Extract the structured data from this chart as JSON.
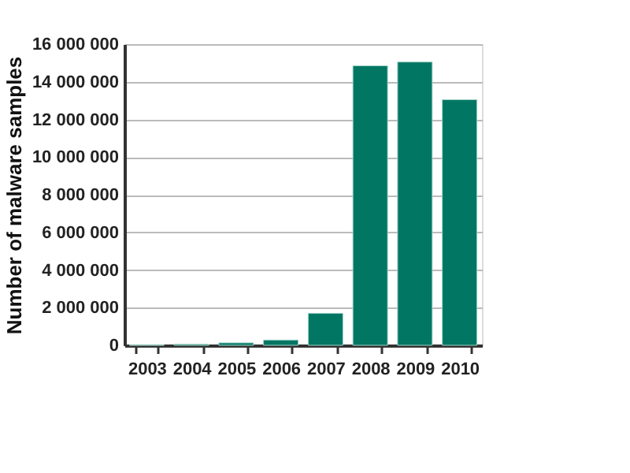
{
  "chart_data": {
    "type": "bar",
    "ylabel": "Number of malware samples",
    "categories": [
      "2003",
      "2004",
      "2005",
      "2006",
      "2007",
      "2008",
      "2009",
      "2010"
    ],
    "values": [
      10000,
      50000,
      130000,
      280000,
      1700000,
      14850000,
      15050000,
      13050000
    ],
    "color": "#007663",
    "ylim": [
      0,
      16000000
    ],
    "yticks": [
      0,
      {
        "value": 2000000,
        "label": "2 000 000"
      },
      {
        "value": 4000000,
        "label": "4 000 000"
      },
      {
        "value": 6000000,
        "label": "6 000 000"
      },
      {
        "value": 8000000,
        "label": "8 000 000"
      },
      {
        "value": 10000000,
        "label": "10 000 000"
      },
      {
        "value": 12000000,
        "label": "12 000 000"
      },
      {
        "value": 14000000,
        "label": "14 000 000"
      },
      {
        "value": 16000000,
        "label": "16 000 000"
      }
    ],
    "grid": "y"
  }
}
